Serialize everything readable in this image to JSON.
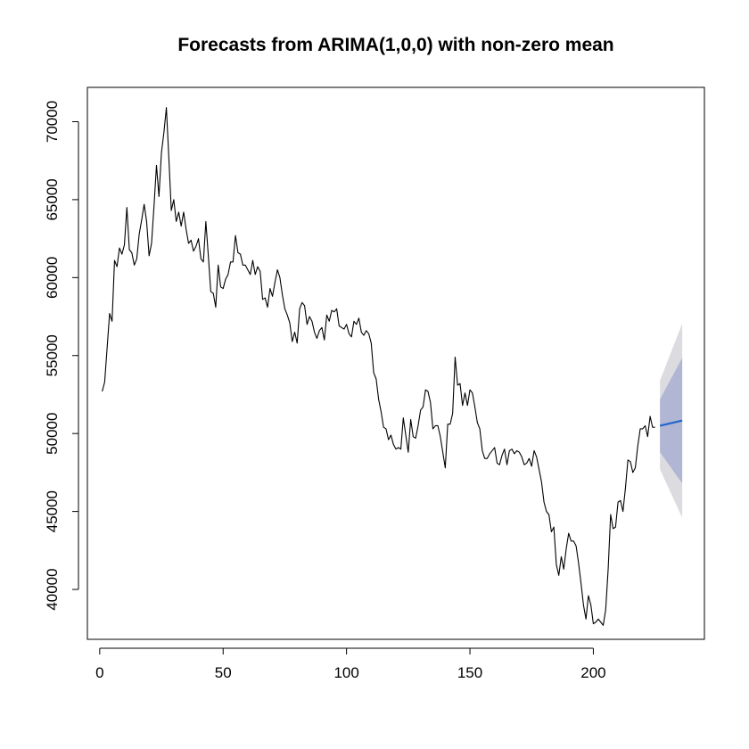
{
  "chart_data": {
    "type": "line",
    "title": "Forecasts from ARIMA(1,0,0) with non-zero mean",
    "xlabel": "",
    "ylabel": "",
    "xlim": [
      -5,
      245
    ],
    "ylim": [
      36800,
      72200
    ],
    "x_ticks": [
      0,
      50,
      100,
      150,
      200
    ],
    "y_ticks": [
      40000,
      45000,
      50000,
      55000,
      60000,
      65000,
      70000
    ],
    "x_tick_labels": [
      "0",
      "50",
      "100",
      "150",
      "200"
    ],
    "y_tick_labels": [
      "40000",
      "45000",
      "50000",
      "55000",
      "60000",
      "65000",
      "70000"
    ],
    "grid": false,
    "legend": "none",
    "colors": {
      "observed": "#000000",
      "forecast": "#2266cc",
      "interval_80": "#b0b6d3",
      "interval_95": "#dcdce0"
    },
    "series": [
      {
        "role": "observed",
        "x_start": 1,
        "values": [
          52700,
          53300,
          55500,
          57700,
          57200,
          61100,
          60700,
          61900,
          61500,
          62100,
          64500,
          61800,
          61600,
          60800,
          61200,
          62800,
          63700,
          64700,
          63600,
          61400,
          62200,
          64600,
          67200,
          65200,
          68000,
          69300,
          70900,
          67700,
          64300,
          65000,
          63600,
          64200,
          63300,
          64200,
          63100,
          62200,
          62400,
          61700,
          62000,
          62500,
          61200,
          61000,
          63600,
          61400,
          59100,
          59000,
          58100,
          60800,
          59400,
          59300,
          59900,
          60200,
          61000,
          61000,
          62700,
          61600,
          61500,
          60800,
          60800,
          60500,
          60200,
          61100,
          60200,
          60700,
          60400,
          58600,
          58700,
          58100,
          59300,
          58800,
          59700,
          60500,
          60000,
          58900,
          58000,
          57600,
          57100,
          55900,
          56500,
          55800,
          58000,
          58400,
          58200,
          57000,
          57500,
          57200,
          56500,
          56100,
          56600,
          56800,
          56000,
          57600,
          57200,
          57900,
          57800,
          58000,
          56900,
          56800,
          56700,
          57000,
          56400,
          56200,
          57200,
          57000,
          57400,
          56500,
          56300,
          56600,
          56400,
          55800,
          53900,
          53500,
          52200,
          51400,
          50400,
          50300,
          49600,
          49900,
          49300,
          49000,
          49100,
          49000,
          51000,
          49900,
          48800,
          50900,
          49800,
          49700,
          50500,
          51500,
          51700,
          52800,
          52700,
          52000,
          50300,
          50500,
          50500,
          49800,
          48800,
          47800,
          50600,
          50600,
          51300,
          54900,
          53100,
          53200,
          51800,
          52600,
          51800,
          52800,
          52600,
          51700,
          50700,
          50300,
          48900,
          48400,
          48400,
          48700,
          48900,
          49100,
          48100,
          48000,
          48600,
          49000,
          48000,
          48900,
          49000,
          48700,
          48900,
          48800,
          48500,
          48000,
          48100,
          48400,
          47900,
          48900,
          48500,
          47700,
          46900,
          45600,
          45000,
          44800,
          43700,
          44000,
          41600,
          40900,
          42100,
          41300,
          42600,
          43600,
          43100,
          43100,
          42800,
          41700,
          40400,
          39000,
          38100,
          39600,
          39000,
          37800,
          37900,
          38100,
          37900,
          37700,
          38700,
          41300,
          44800,
          43900,
          44000,
          45600,
          45700,
          45000,
          46500,
          48300,
          48200,
          47500,
          47800,
          49200,
          50300,
          50300,
          50500,
          49800,
          51100,
          50400,
          50400
        ]
      },
      {
        "role": "forecast",
        "name": "",
        "x": [
          227,
          236
        ],
        "mean": [
          50500,
          50830
        ],
        "lo80": [
          48800,
          46800
        ],
        "hi80": [
          52200,
          54850
        ],
        "lo95": [
          47700,
          44600
        ],
        "hi95": [
          53400,
          57050
        ]
      }
    ]
  }
}
